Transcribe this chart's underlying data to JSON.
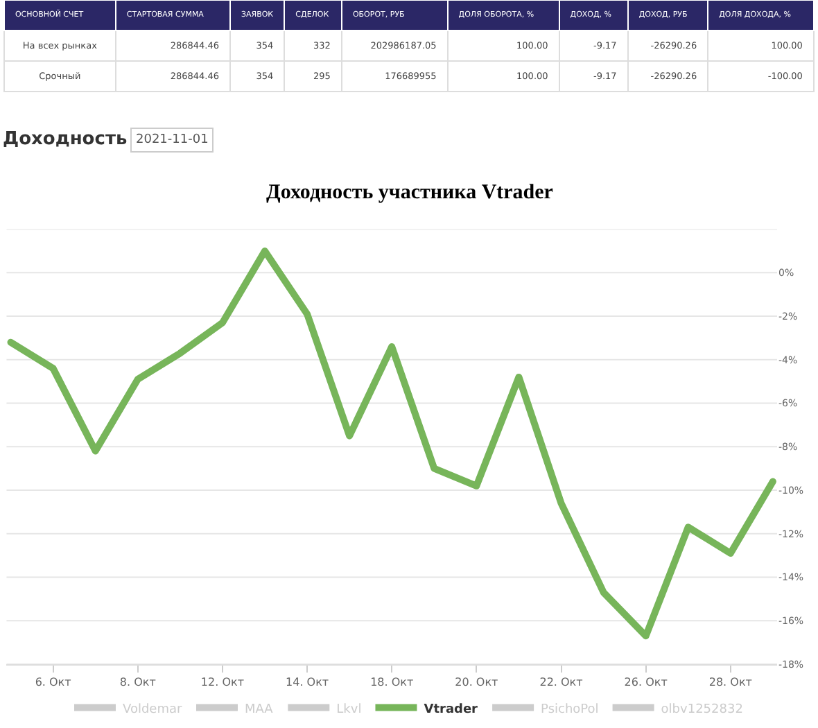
{
  "chart_data": [
    {
      "type": "other",
      "categories": [
        "ОСНОВНОЙ СЧЕТ",
        "СТАРТОВАЯ СУММА",
        "ЗАЯВОК",
        "СДЕЛОК",
        "ОБОРОТ, РУБ",
        "ДОЛЯ ОБОРОТА, %",
        "ДОХОД, %",
        "ДОХОД, РУБ",
        "ДОЛЯ ДОХОДА, %"
      ],
      "y_categories": [
        "На всех рынках",
        "Срочный"
      ],
      "cell_labels": [
        [
          "286844.46",
          "354",
          "332",
          "202986187.05",
          "100.00",
          "-9.17",
          "-26290.26",
          "100.00"
        ],
        [
          "286844.46",
          "354",
          "295",
          "176689955",
          "100.00",
          "-9.17",
          "-26290.26",
          "-100.00"
        ]
      ]
    },
    {
      "type": "line",
      "title": "Доходность участника Vtrader",
      "annotations": [
        "Доходность",
        "2021-11-01"
      ],
      "categories": [
        null,
        "6. Окт",
        null,
        "8. Окт",
        null,
        "12. Окт",
        null,
        "14. Окт",
        null,
        "18. Окт",
        null,
        "20. Окт",
        null,
        "22. Окт",
        null,
        "26. Окт",
        null,
        "28. Окт",
        null
      ],
      "series": [
        {
          "name": "Voldemar",
          "color": "#cccccc",
          "values": [
            null,
            null,
            null,
            null,
            null,
            null,
            null,
            null,
            null,
            null,
            null,
            null,
            null,
            null,
            null,
            null,
            null,
            null,
            null
          ]
        },
        {
          "name": "MAA",
          "color": "#cccccc",
          "values": [
            null,
            null,
            null,
            null,
            null,
            null,
            null,
            null,
            null,
            null,
            null,
            null,
            null,
            null,
            null,
            null,
            null,
            null,
            null
          ]
        },
        {
          "name": "Lkvl",
          "color": "#cccccc",
          "values": [
            null,
            null,
            null,
            null,
            null,
            null,
            null,
            null,
            null,
            null,
            null,
            null,
            null,
            null,
            null,
            null,
            null,
            null,
            null
          ]
        },
        {
          "name": "Vtrader",
          "color": "#77b55a",
          "values": [
            -3.2,
            -4.4,
            -8.2,
            -4.9,
            -3.7,
            -2.3,
            1.0,
            -1.9,
            -7.5,
            -3.4,
            -9.0,
            -9.8,
            -4.8,
            -10.6,
            -14.7,
            -16.7,
            -11.7,
            -12.9,
            -9.6
          ]
        },
        {
          "name": "PsichoPol",
          "color": "#cccccc",
          "values": [
            null,
            null,
            null,
            null,
            null,
            null,
            null,
            null,
            null,
            null,
            null,
            null,
            null,
            null,
            null,
            null,
            null,
            null,
            null
          ]
        },
        {
          "name": "olbv1252832",
          "color": "#cccccc",
          "values": [
            null,
            null,
            null,
            null,
            null,
            null,
            null,
            null,
            null,
            null,
            null,
            null,
            null,
            null,
            null,
            null,
            null,
            null,
            null
          ]
        }
      ],
      "ylim": [
        -18,
        2
      ],
      "yticks": [
        {
          "value": 2,
          "label": null
        },
        {
          "value": 0,
          "label": "0%"
        },
        {
          "value": -2,
          "label": "-2%"
        },
        {
          "value": -4,
          "label": "-4%"
        },
        {
          "value": -6,
          "label": "-6%"
        },
        {
          "value": -8,
          "label": "-8%"
        },
        {
          "value": -10,
          "label": "-10%"
        },
        {
          "value": -12,
          "label": "-12%"
        },
        {
          "value": -14,
          "label": "-14%"
        },
        {
          "value": -16,
          "label": "-16%"
        },
        {
          "value": -18,
          "label": "-18%"
        }
      ],
      "grid": "y",
      "legend": "bottom",
      "marker": "none",
      "line_style": "solid"
    }
  ]
}
